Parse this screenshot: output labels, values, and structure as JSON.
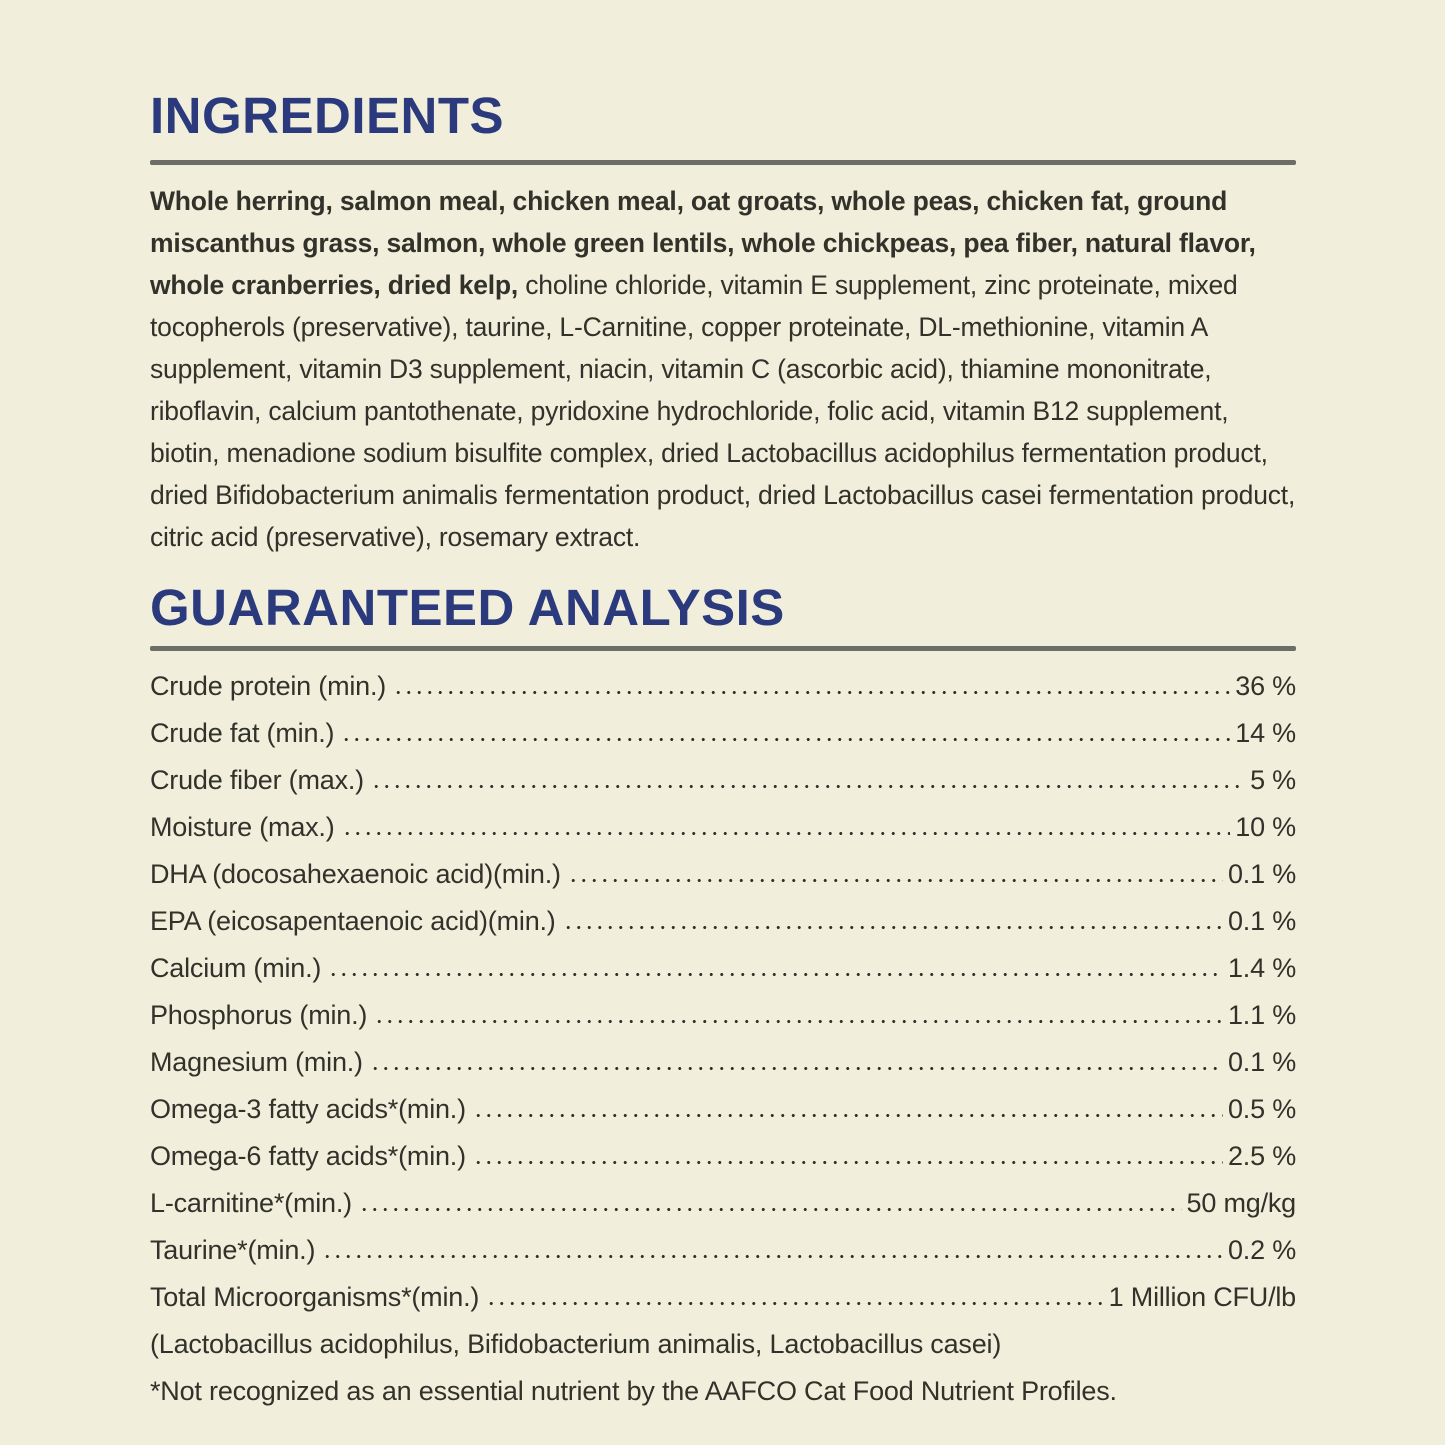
{
  "palette": {
    "background": "#f1efdc",
    "heading": "#2b3a7c",
    "rule": "#6c6c68",
    "text": "#32312a"
  },
  "ingredients": {
    "title": "INGREDIENTS",
    "bold_text": "Whole herring, salmon meal, chicken meal, oat groats, whole peas, chicken fat, ground miscanthus grass, salmon, whole green lentils, whole chickpeas, pea fiber, natural flavor, whole cranberries, dried kelp,",
    "regular_text": " choline chloride, vitamin E supplement, zinc proteinate, mixed tocopherols (preservative), taurine, L-Carnitine, copper proteinate, DL-methionine, vitamin A supplement, vitamin D3 supplement, niacin, vitamin C (ascorbic acid), thiamine mononitrate, riboflavin, calcium pantothenate, pyridoxine hydrochloride, folic acid, vitamin B12 supplement, biotin, menadione sodium bisulfite complex, dried Lactobacillus acidophilus fermentation product, dried Bifidobacterium animalis fermentation product, dried Lactobacillus casei fermentation product, citric acid (preservative), rosemary extract."
  },
  "analysis": {
    "title": "GUARANTEED ANALYSIS",
    "rows": [
      {
        "label": "Crude protein (min.)",
        "value": "36 %"
      },
      {
        "label": "Crude fat (min.)",
        "value": "14 %"
      },
      {
        "label": "Crude fiber (max.)",
        "value": "5 %"
      },
      {
        "label": "Moisture (max.)",
        "value": "10 %"
      },
      {
        "label": "DHA (docosahexaenoic acid)(min.)",
        "value": "0.1 %"
      },
      {
        "label": "EPA (eicosapentaenoic acid)(min.)",
        "value": "0.1 %"
      },
      {
        "label": "Calcium (min.)",
        "value": "1.4 %"
      },
      {
        "label": "Phosphorus (min.)",
        "value": "1.1 %"
      },
      {
        "label": "Magnesium (min.)",
        "value": "0.1 %"
      },
      {
        "label": "Omega-3 fatty acids*(min.)",
        "value": "0.5 %"
      },
      {
        "label": "Omega-6 fatty acids*(min.)",
        "value": "2.5 %"
      },
      {
        "label": "L-carnitine*(min.)",
        "value": "50 mg/kg"
      },
      {
        "label": "Taurine*(min.)",
        "value": "0.2 %"
      },
      {
        "label": "Total Microorganisms*(min.)",
        "value": "1 Million CFU/lb"
      }
    ],
    "species_note": "(Lactobacillus acidophilus, Bifidobacterium animalis, Lactobacillus casei)",
    "footnote": "*Not recognized as an essential nutrient by the AAFCO Cat Food Nutrient Profiles."
  }
}
